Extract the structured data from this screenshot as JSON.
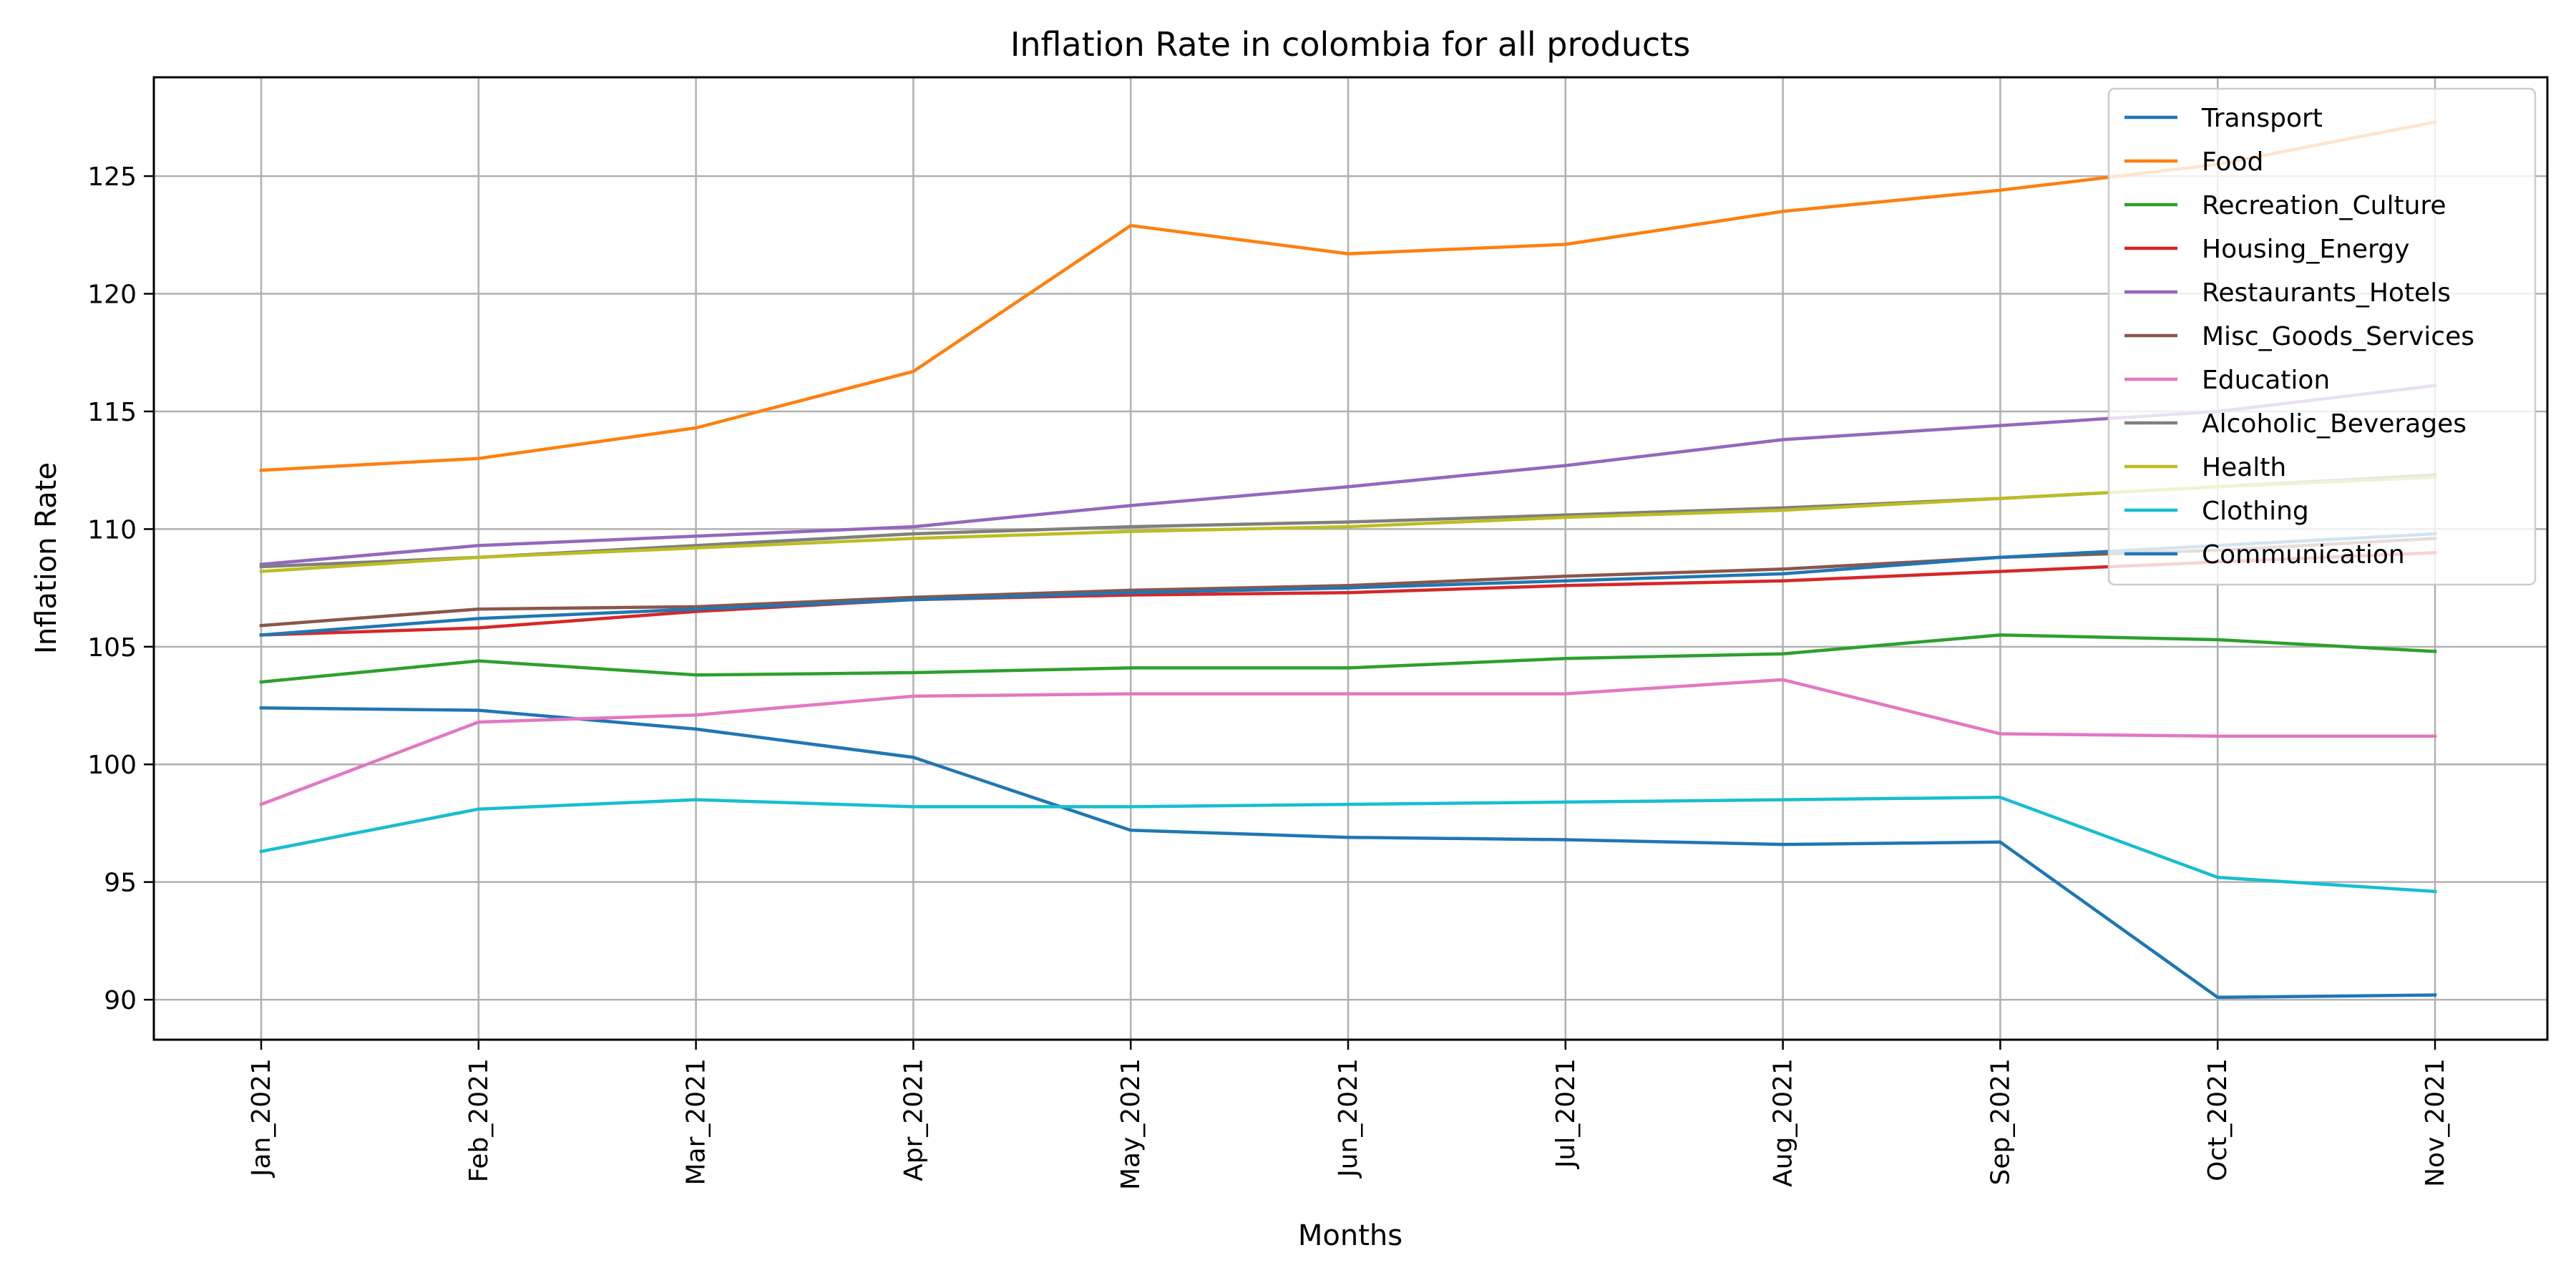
{
  "chart_data": {
    "type": "line",
    "title": "Inflation Rate in colombia for all products",
    "xlabel": "Months",
    "ylabel": "Inflation Rate",
    "categories": [
      "Jan_2021",
      "Feb_2021",
      "Mar_2021",
      "Apr_2021",
      "May_2021",
      "Jun_2021",
      "Jul_2021",
      "Aug_2021",
      "Sep_2021",
      "Oct_2021",
      "Nov_2021"
    ],
    "ylim": [
      88.3,
      129.2
    ],
    "yticks": [
      90,
      95,
      100,
      105,
      110,
      115,
      120,
      125
    ],
    "grid": true,
    "legend_position": "top-right",
    "series": [
      {
        "name": "Transport",
        "color": "#1f77b4",
        "values": [
          102.4,
          102.3,
          101.5,
          100.3,
          97.2,
          96.9,
          96.8,
          96.6,
          96.7,
          90.1,
          90.2
        ]
      },
      {
        "name": "Food",
        "color": "#ff7f0e",
        "values": [
          112.5,
          113.0,
          114.3,
          116.7,
          122.9,
          121.7,
          122.1,
          123.5,
          124.4,
          125.5,
          127.3
        ]
      },
      {
        "name": "Recreation_Culture",
        "color": "#2ca02c",
        "values": [
          103.5,
          104.4,
          103.8,
          103.9,
          104.1,
          104.1,
          104.5,
          104.7,
          105.5,
          105.3,
          104.8
        ]
      },
      {
        "name": "Housing_Energy",
        "color": "#d62728",
        "values": [
          105.5,
          105.8,
          106.5,
          107.0,
          107.2,
          107.3,
          107.6,
          107.8,
          108.2,
          108.6,
          109.0
        ]
      },
      {
        "name": "Restaurants_Hotels",
        "color": "#9467bd",
        "values": [
          108.5,
          109.3,
          109.7,
          110.1,
          111.0,
          111.8,
          112.7,
          113.8,
          114.4,
          115.0,
          116.1
        ]
      },
      {
        "name": "Misc_Goods_Services",
        "color": "#8c564b",
        "values": [
          105.9,
          106.6,
          106.7,
          107.1,
          107.4,
          107.6,
          108.0,
          108.3,
          108.8,
          109.1,
          109.6
        ]
      },
      {
        "name": "Education",
        "color": "#e377c2",
        "values": [
          98.3,
          101.8,
          102.1,
          102.9,
          103.0,
          103.0,
          103.0,
          103.6,
          101.3,
          101.2,
          101.2
        ]
      },
      {
        "name": "Alcoholic_Beverages",
        "color": "#7f7f7f",
        "values": [
          108.4,
          108.8,
          109.3,
          109.8,
          110.1,
          110.3,
          110.6,
          110.9,
          111.3,
          111.8,
          112.3
        ]
      },
      {
        "name": "Health",
        "color": "#bcbd22",
        "values": [
          108.2,
          108.8,
          109.2,
          109.6,
          109.9,
          110.1,
          110.5,
          110.8,
          111.3,
          111.8,
          112.2
        ]
      },
      {
        "name": "Clothing",
        "color": "#17becf",
        "values": [
          96.3,
          98.1,
          98.5,
          98.2,
          98.2,
          98.3,
          98.4,
          98.5,
          98.6,
          95.2,
          94.6
        ]
      },
      {
        "name": "Communication",
        "color": "#1f77b4",
        "values": [
          105.5,
          106.2,
          106.6,
          107.0,
          107.3,
          107.5,
          107.8,
          108.1,
          108.8,
          109.3,
          109.8
        ]
      }
    ]
  }
}
